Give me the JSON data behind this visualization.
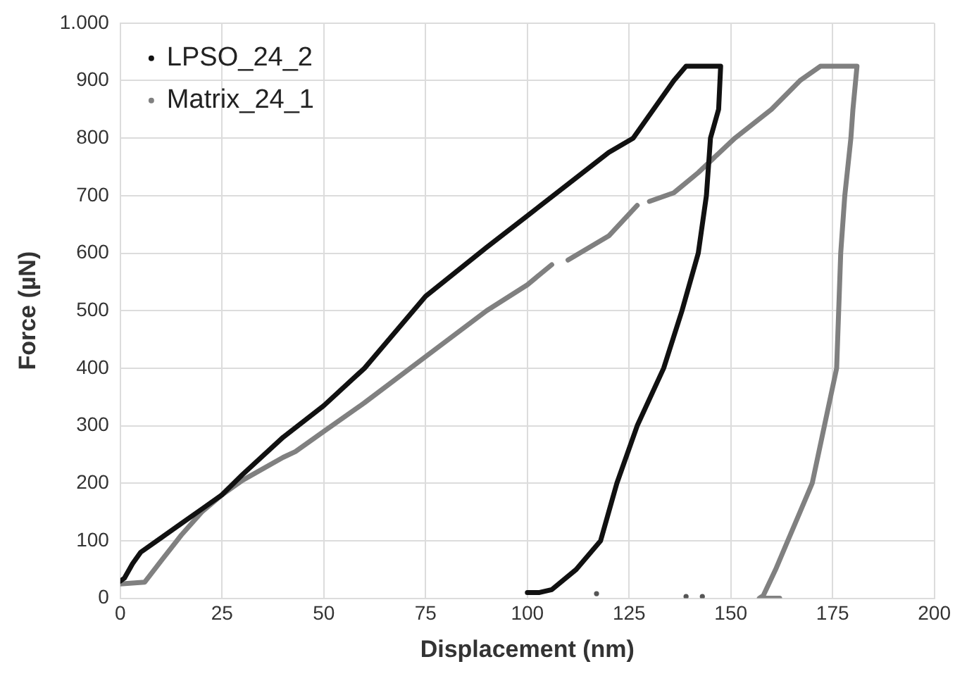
{
  "chart_data": {
    "type": "line",
    "xlabel": "Displacement (nm)",
    "ylabel": "Force (µN)",
    "xlim": [
      0,
      200
    ],
    "xticks": [
      0,
      25,
      50,
      75,
      100,
      125,
      150,
      175,
      200
    ],
    "ylim": [
      0,
      1000
    ],
    "yticks": [
      0,
      100,
      200,
      300,
      400,
      500,
      600,
      700,
      800,
      900,
      {
        "value": 1000,
        "label": "1.000"
      }
    ],
    "grid": true,
    "legend": "top left",
    "marker": "none",
    "line_style": "solid",
    "series": [
      {
        "name": "LPSO_24_2",
        "color": "#111111",
        "x": [
          0,
          1,
          3,
          5,
          10,
          15,
          20,
          25,
          30,
          40,
          50,
          60,
          75,
          90,
          100,
          110,
          120,
          126,
          130,
          136,
          139,
          147.5,
          147,
          145,
          144,
          142,
          138,
          133.5,
          127,
          122,
          118,
          112,
          106,
          103,
          100
        ],
        "values": [
          30,
          35,
          60,
          80,
          105,
          130,
          155,
          180,
          215,
          280,
          335,
          400,
          525,
          610,
          665,
          720,
          775,
          800,
          840,
          900,
          925,
          925,
          850,
          800,
          700,
          600,
          500,
          400,
          300,
          200,
          100,
          50,
          15,
          10,
          10
        ]
      },
      {
        "name": "Matrix_24_1",
        "color": "#808080",
        "x": [
          0,
          6,
          10,
          15,
          20,
          25,
          30,
          40,
          43,
          50,
          60,
          75,
          90,
          100,
          106,
          108,
          110,
          120,
          127,
          128.5,
          130,
          136,
          142,
          151,
          160,
          167,
          172,
          181,
          180,
          179.5,
          178,
          177,
          176.5,
          176,
          173,
          170,
          167,
          164,
          161,
          158,
          157,
          162
        ],
        "values": [
          25,
          28,
          65,
          110,
          150,
          180,
          205,
          245,
          255,
          290,
          340,
          420,
          500,
          545,
          580,
          null,
          588,
          630,
          683,
          null,
          690,
          705,
          740,
          800,
          850,
          900,
          925,
          925,
          850,
          800,
          700,
          600,
          500,
          400,
          300,
          200,
          150,
          100,
          50,
          5,
          0,
          0
        ]
      },
      {
        "type": "scatter",
        "marker": "circle",
        "color": "#555555",
        "x": [
          117,
          139,
          143
        ],
        "values": [
          8,
          3,
          3
        ]
      }
    ]
  }
}
